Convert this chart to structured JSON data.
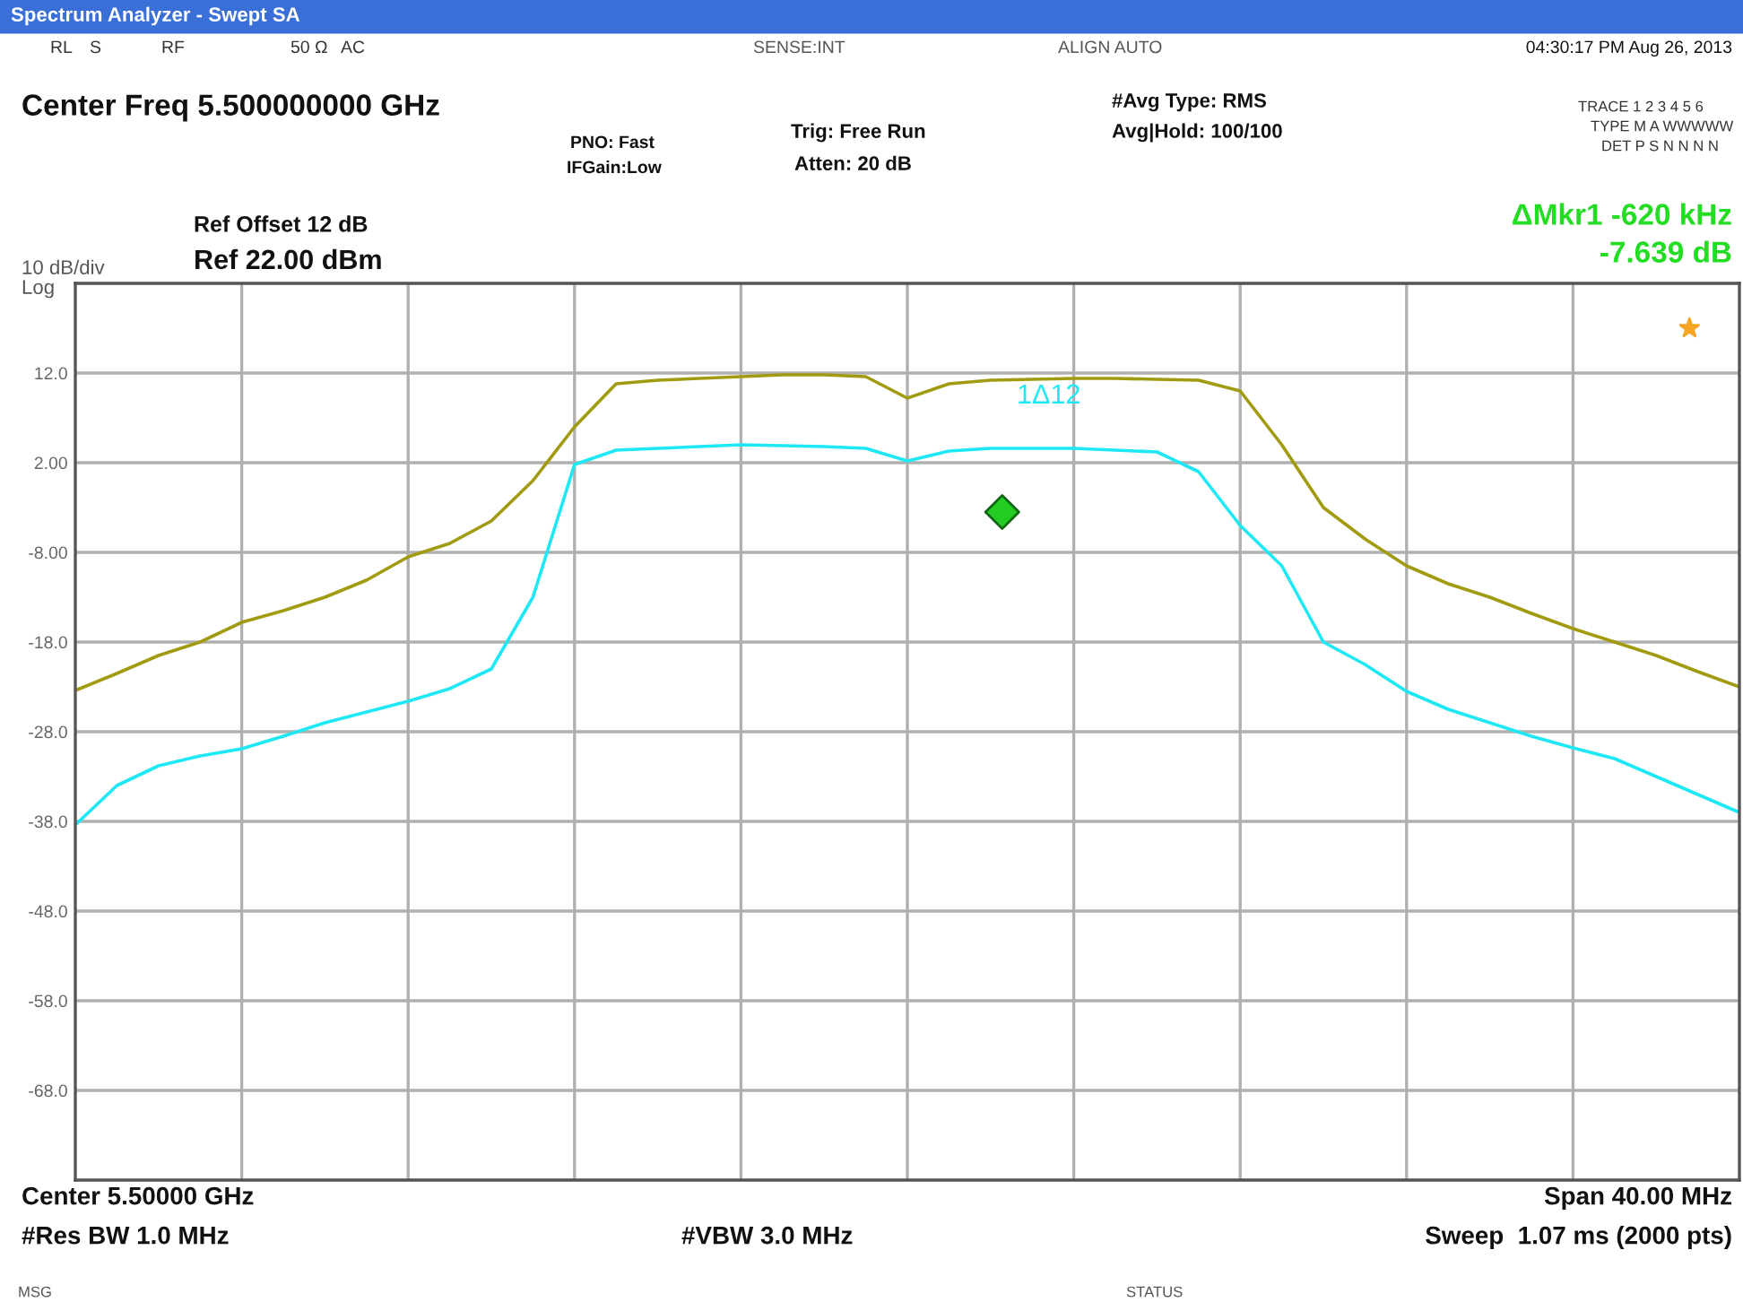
{
  "chart_data": {
    "type": "line",
    "title": "Spectrum Analyzer - Swept SA",
    "categories": [
      null,
      null,
      null,
      null,
      null,
      null,
      null,
      null,
      null,
      null,
      null,
      null,
      null,
      null,
      null,
      null,
      null,
      null,
      null,
      null,
      null,
      null,
      null,
      null,
      null,
      null,
      null,
      null,
      null,
      null,
      null,
      null,
      null,
      null,
      null,
      null,
      null,
      null,
      null,
      null,
      null
    ],
    "ylim": [
      -78,
      22
    ],
    "yticks": [
      {
        "value": 12,
        "label": "12.0"
      },
      {
        "value": 2,
        "label": "2.00"
      },
      {
        "value": -8,
        "label": "-8.00"
      },
      {
        "value": -18,
        "label": "-18.0"
      },
      {
        "value": -28,
        "label": "-28.0"
      },
      {
        "value": -38,
        "label": "-38.0"
      },
      {
        "value": -48,
        "label": "-48.0"
      },
      {
        "value": -58,
        "label": "-58.0"
      },
      {
        "value": -68,
        "label": "-68.0"
      }
    ],
    "tick_labels": "y",
    "grid": true,
    "series": [
      {
        "color": "#a19b12",
        "values": [
          -23.4,
          -21.5,
          -19.5,
          -18,
          -15.8,
          -14.5,
          -13,
          -11.1,
          -8.5,
          -7,
          -4.5,
          0,
          6,
          10.8,
          11.2,
          11.4,
          11.6,
          11.8,
          11.8,
          11.6,
          9.2,
          10.8,
          11.2,
          11.3,
          11.4,
          11.4,
          11.3,
          11.2,
          10,
          4,
          -3,
          -6.5,
          -9.5,
          -11.5,
          -13,
          -14.8,
          -16.5,
          -18,
          -19.5,
          -21.3,
          -23
        ]
      },
      {
        "color": "#1ee8f5",
        "values": [
          -38.4,
          -34,
          -31.8,
          -30.7,
          -29.9,
          -28.5,
          -27,
          -25.8,
          -24.6,
          -23.2,
          -21,
          -13,
          1.8,
          3.4,
          3.6,
          3.8,
          4,
          3.9,
          3.8,
          3.6,
          2.2,
          3.3,
          3.6,
          3.6,
          3.6,
          3.4,
          3.2,
          1,
          -5,
          -9.5,
          -18,
          -20.5,
          -23.5,
          -25.5,
          -27,
          -28.5,
          -29.8,
          -31,
          -33,
          -35,
          -37
        ]
      }
    ],
    "annotations": [
      "RL",
      "S",
      "RF",
      "50 Ω",
      "AC",
      "SENSE:INT",
      "ALIGN AUTO",
      "04:30:17 PM Aug 26, 2013",
      "Center Freq 5.500000000 GHz",
      "PNO: Fast",
      "IFGain:Low",
      "Trig: Free Run",
      "Atten: 20 dB",
      "#Avg Type: RMS",
      "Avg|Hold: 100/100",
      "TRACE 1 2 3 4 5 6",
      "TYPE M A WWWWW",
      "DET P S N N N N",
      "Ref Offset 12 dB",
      "Ref 22.00 dBm",
      "10 dB/div",
      "Log",
      "ΔMkr1 -620 kHz",
      "-7.639 dB",
      "1Δ12",
      "Center 5.50000 GHz",
      "Span 40.00 MHz",
      "#Res BW 1.0 MHz",
      "#VBW 3.0 MHz",
      "Sweep  1.07 ms (2000 pts)",
      "MSG",
      "STATUS"
    ]
  }
}
